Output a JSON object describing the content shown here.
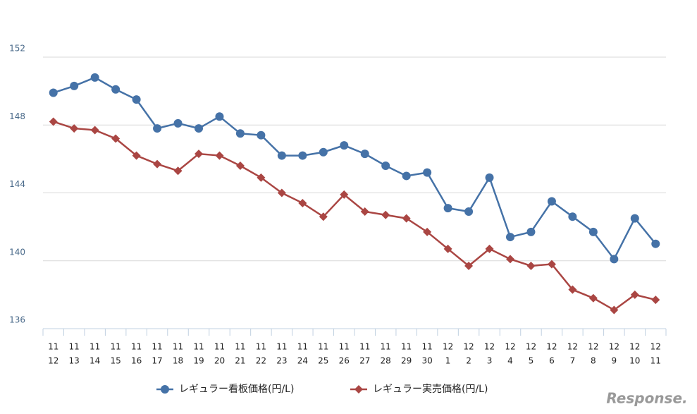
{
  "chart_data": {
    "type": "line",
    "categories": [
      [
        "11",
        "12"
      ],
      [
        "11",
        "13"
      ],
      [
        "11",
        "14"
      ],
      [
        "11",
        "15"
      ],
      [
        "11",
        "16"
      ],
      [
        "11",
        "17"
      ],
      [
        "11",
        "18"
      ],
      [
        "11",
        "19"
      ],
      [
        "11",
        "20"
      ],
      [
        "11",
        "21"
      ],
      [
        "11",
        "22"
      ],
      [
        "11",
        "23"
      ],
      [
        "11",
        "24"
      ],
      [
        "11",
        "25"
      ],
      [
        "11",
        "26"
      ],
      [
        "11",
        "27"
      ],
      [
        "11",
        "28"
      ],
      [
        "11",
        "29"
      ],
      [
        "11",
        "30"
      ],
      [
        "12",
        "1"
      ],
      [
        "12",
        "2"
      ],
      [
        "12",
        "3"
      ],
      [
        "12",
        "4"
      ],
      [
        "12",
        "5"
      ],
      [
        "12",
        "6"
      ],
      [
        "12",
        "7"
      ],
      [
        "12",
        "8"
      ],
      [
        "12",
        "9"
      ],
      [
        "12",
        "10"
      ],
      [
        "12",
        "11"
      ]
    ],
    "series": [
      {
        "name": "レギュラー看板価格(円/L)",
        "color": "#4572a7",
        "marker": "circle",
        "values": [
          149.9,
          150.3,
          150.8,
          150.1,
          149.5,
          147.8,
          148.1,
          147.8,
          148.5,
          147.5,
          147.4,
          146.2,
          146.2,
          146.4,
          146.8,
          146.3,
          145.6,
          145.0,
          145.2,
          143.1,
          142.9,
          144.9,
          141.4,
          141.7,
          143.5,
          142.6,
          141.7,
          140.1,
          142.5,
          141.0
        ]
      },
      {
        "name": "レギュラー実売価格(円/L)",
        "color": "#aa4643",
        "marker": "diamond",
        "values": [
          148.2,
          147.8,
          147.7,
          147.2,
          146.2,
          145.7,
          145.3,
          146.3,
          146.2,
          145.6,
          144.9,
          144.0,
          143.4,
          142.6,
          143.9,
          142.9,
          142.7,
          142.5,
          141.7,
          140.7,
          139.7,
          140.7,
          140.1,
          139.7,
          139.8,
          138.3,
          137.8,
          137.1,
          138.0,
          137.7
        ]
      }
    ],
    "ylim": [
      136,
      152
    ],
    "yticks": [
      136,
      140,
      144,
      148,
      152
    ],
    "grid": true,
    "legend": "bottom",
    "watermark": "Response."
  }
}
